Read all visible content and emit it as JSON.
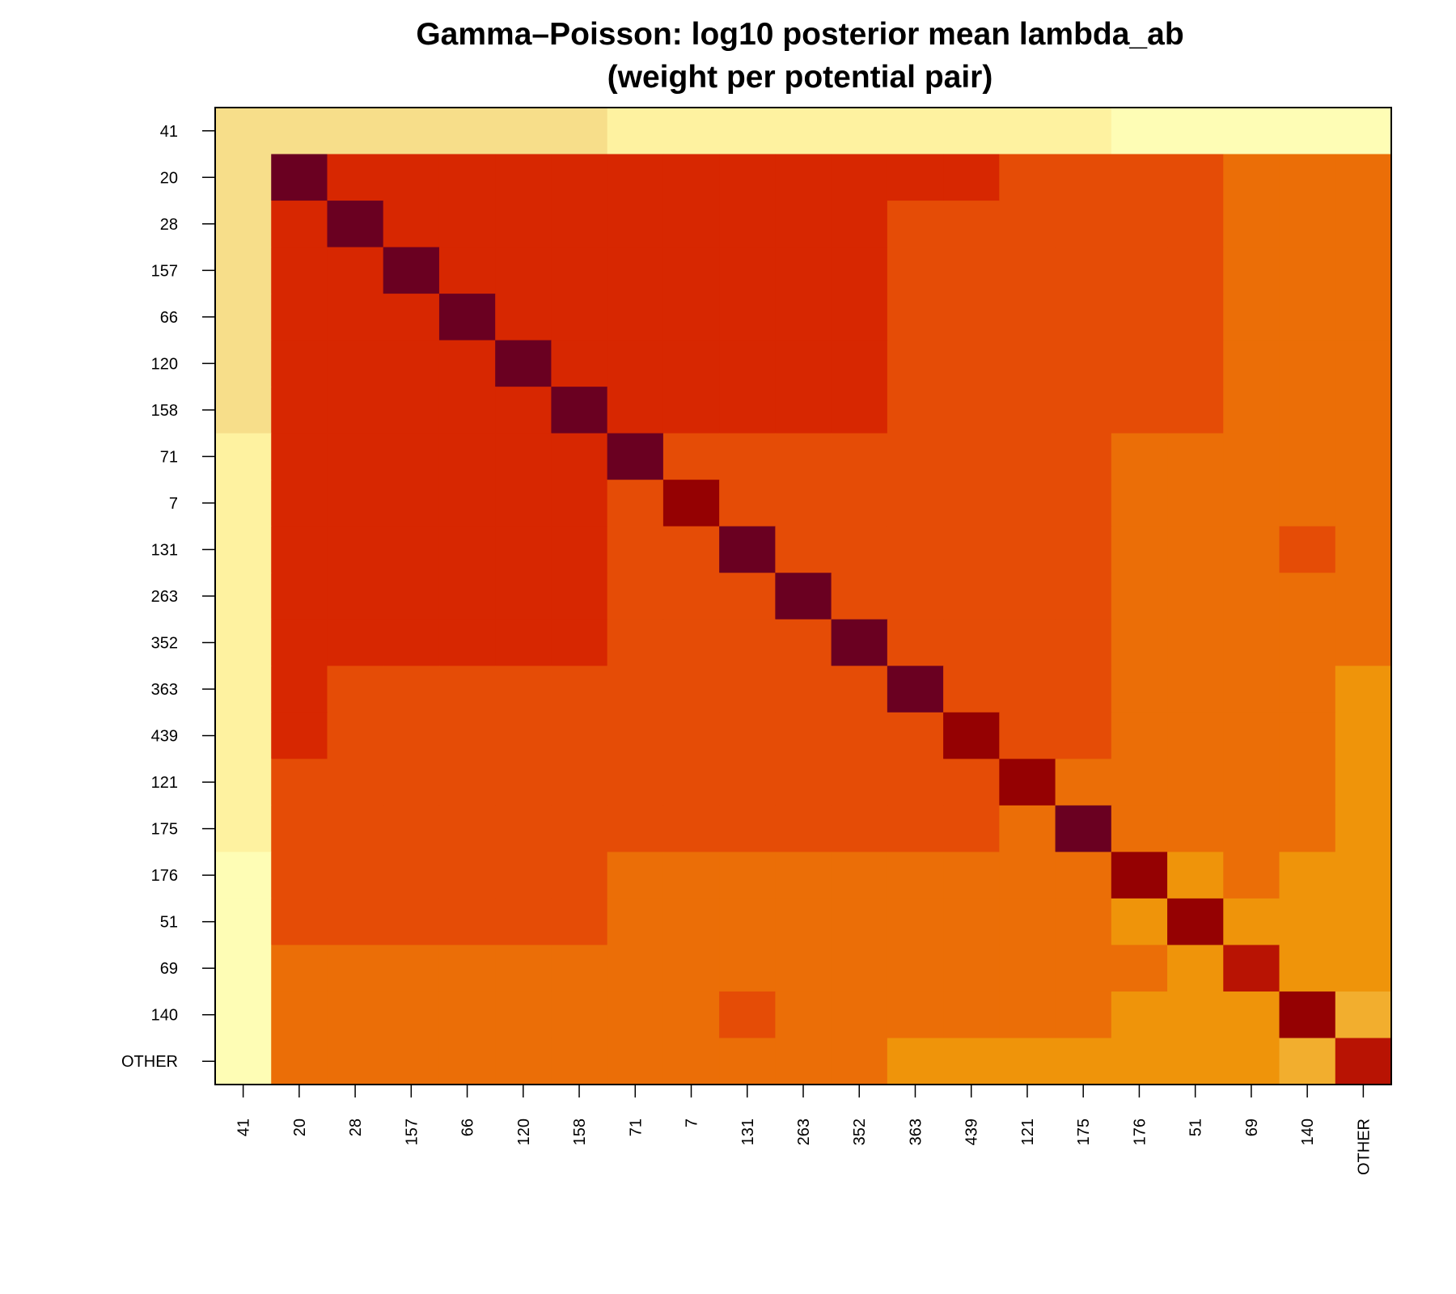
{
  "chart_data": {
    "type": "heatmap",
    "title": "Gamma–Poisson: log10 posterior mean lambda_ab",
    "subtitle": "(weight per potential pair)",
    "xlabel": "",
    "ylabel": "",
    "x_categories": [
      "41",
      "20",
      "28",
      "157",
      "66",
      "120",
      "158",
      "71",
      "7",
      "131",
      "263",
      "352",
      "363",
      "439",
      "121",
      "175",
      "176",
      "51",
      "69",
      "140",
      "OTHER"
    ],
    "y_categories": [
      "41",
      "20",
      "28",
      "157",
      "66",
      "120",
      "158",
      "71",
      "7",
      "131",
      "263",
      "352",
      "363",
      "439",
      "121",
      "175",
      "176",
      "51",
      "69",
      "140",
      "OTHER"
    ],
    "level_scale": "heat colors: 0 = lightest (pale yellow), 9 = darkest (dark red)",
    "palette": [
      "#FEFDB5",
      "#FEF2A0",
      "#F7DE8A",
      "#F2AE2E",
      "#EF940A",
      "#EB6E07",
      "#E54C06",
      "#D72701",
      "#B81303",
      "#950102",
      "#6A0021"
    ],
    "levels": [
      [
        2,
        2,
        2,
        2,
        2,
        2,
        2,
        1,
        1,
        1,
        1,
        1,
        1,
        1,
        1,
        1,
        0,
        0,
        0,
        0,
        0
      ],
      [
        2,
        10,
        7,
        7,
        7,
        7,
        7,
        7,
        7,
        7,
        7,
        7,
        7,
        7,
        6,
        6,
        6,
        6,
        5,
        5,
        5
      ],
      [
        2,
        7,
        10,
        7,
        7,
        7,
        7,
        7,
        7,
        7,
        7,
        7,
        6,
        6,
        6,
        6,
        6,
        6,
        5,
        5,
        5
      ],
      [
        2,
        7,
        7,
        10,
        7,
        7,
        7,
        7,
        7,
        7,
        7,
        7,
        6,
        6,
        6,
        6,
        6,
        6,
        5,
        5,
        5
      ],
      [
        2,
        7,
        7,
        7,
        10,
        7,
        7,
        7,
        7,
        7,
        7,
        7,
        6,
        6,
        6,
        6,
        6,
        6,
        5,
        5,
        5
      ],
      [
        2,
        7,
        7,
        7,
        7,
        10,
        7,
        7,
        7,
        7,
        7,
        7,
        6,
        6,
        6,
        6,
        6,
        6,
        5,
        5,
        5
      ],
      [
        2,
        7,
        7,
        7,
        7,
        7,
        10,
        7,
        7,
        7,
        7,
        7,
        6,
        6,
        6,
        6,
        6,
        6,
        5,
        5,
        5
      ],
      [
        1,
        7,
        7,
        7,
        7,
        7,
        7,
        10,
        6,
        6,
        6,
        6,
        6,
        6,
        6,
        6,
        5,
        5,
        5,
        5,
        5
      ],
      [
        1,
        7,
        7,
        7,
        7,
        7,
        7,
        6,
        9,
        6,
        6,
        6,
        6,
        6,
        6,
        6,
        5,
        5,
        5,
        5,
        5
      ],
      [
        1,
        7,
        7,
        7,
        7,
        7,
        7,
        6,
        6,
        10,
        6,
        6,
        6,
        6,
        6,
        6,
        5,
        5,
        5,
        6,
        5
      ],
      [
        1,
        7,
        7,
        7,
        7,
        7,
        7,
        6,
        6,
        6,
        10,
        6,
        6,
        6,
        6,
        6,
        5,
        5,
        5,
        5,
        5
      ],
      [
        1,
        7,
        7,
        7,
        7,
        7,
        7,
        6,
        6,
        6,
        6,
        10,
        6,
        6,
        6,
        6,
        5,
        5,
        5,
        5,
        5
      ],
      [
        1,
        7,
        6,
        6,
        6,
        6,
        6,
        6,
        6,
        6,
        6,
        6,
        10,
        6,
        6,
        6,
        5,
        5,
        5,
        5,
        4
      ],
      [
        1,
        7,
        6,
        6,
        6,
        6,
        6,
        6,
        6,
        6,
        6,
        6,
        6,
        9,
        6,
        6,
        5,
        5,
        5,
        5,
        4
      ],
      [
        1,
        6,
        6,
        6,
        6,
        6,
        6,
        6,
        6,
        6,
        6,
        6,
        6,
        6,
        9,
        5,
        5,
        5,
        5,
        5,
        4
      ],
      [
        1,
        6,
        6,
        6,
        6,
        6,
        6,
        6,
        6,
        6,
        6,
        6,
        6,
        6,
        5,
        10,
        5,
        5,
        5,
        5,
        4
      ],
      [
        0,
        6,
        6,
        6,
        6,
        6,
        6,
        5,
        5,
        5,
        5,
        5,
        5,
        5,
        5,
        5,
        9,
        4,
        5,
        4,
        4
      ],
      [
        0,
        6,
        6,
        6,
        6,
        6,
        6,
        5,
        5,
        5,
        5,
        5,
        5,
        5,
        5,
        5,
        4,
        9,
        4,
        4,
        4
      ],
      [
        0,
        5,
        5,
        5,
        5,
        5,
        5,
        5,
        5,
        5,
        5,
        5,
        5,
        5,
        5,
        5,
        5,
        4,
        8,
        4,
        4
      ],
      [
        0,
        5,
        5,
        5,
        5,
        5,
        5,
        5,
        5,
        6,
        5,
        5,
        5,
        5,
        5,
        5,
        4,
        4,
        4,
        9,
        3
      ],
      [
        0,
        5,
        5,
        5,
        5,
        5,
        5,
        5,
        5,
        5,
        5,
        5,
        4,
        4,
        4,
        4,
        4,
        4,
        4,
        3,
        8
      ]
    ]
  }
}
